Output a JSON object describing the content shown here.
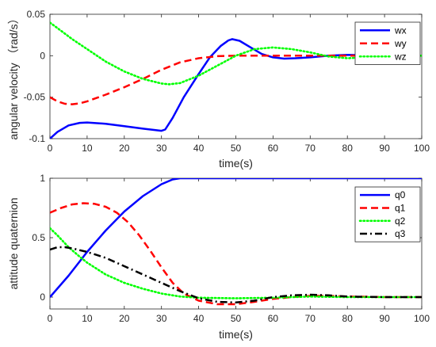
{
  "chart_data": [
    {
      "type": "line",
      "title": "",
      "xlabel": "time(s)",
      "ylabel": "angular velocity （rad/s）",
      "xlim": [
        0,
        100
      ],
      "ylim": [
        -0.1,
        0.05
      ],
      "xticks": [
        "0",
        "10",
        "20",
        "30",
        "40",
        "50",
        "60",
        "70",
        "80",
        "90",
        "100"
      ],
      "yticks": [
        "-0.1",
        "-0.05",
        "0",
        "0.05"
      ],
      "legend_position": "top-right",
      "grid": false,
      "series": [
        {
          "name": "wx",
          "color": "#0000ff",
          "dash": "solid",
          "x": [
            0,
            2,
            5,
            8,
            10,
            15,
            20,
            25,
            28,
            30,
            31,
            33,
            36,
            40,
            43,
            46,
            48,
            49,
            51,
            54,
            57,
            60,
            63,
            66,
            70,
            75,
            80,
            85,
            90,
            95,
            100
          ],
          "y": [
            -0.1,
            -0.092,
            -0.084,
            -0.081,
            -0.0805,
            -0.082,
            -0.085,
            -0.088,
            -0.0895,
            -0.0905,
            -0.089,
            -0.075,
            -0.05,
            -0.022,
            -0.002,
            0.012,
            0.0185,
            0.02,
            0.018,
            0.01,
            0.002,
            -0.002,
            -0.0035,
            -0.003,
            -0.002,
            0.0,
            0.001,
            0.0005,
            0.0,
            0.0,
            0.0
          ]
        },
        {
          "name": "wy",
          "color": "#ff0000",
          "dash": "dashed",
          "x": [
            0,
            2,
            4,
            6,
            8,
            10,
            15,
            20,
            25,
            30,
            35,
            40,
            45,
            50,
            60,
            70,
            80,
            90,
            100
          ],
          "y": [
            -0.05,
            -0.055,
            -0.058,
            -0.0585,
            -0.0575,
            -0.055,
            -0.047,
            -0.038,
            -0.028,
            -0.017,
            -0.008,
            -0.003,
            -0.0005,
            0.0,
            0.0,
            0.0,
            0.0,
            0.0,
            0.0
          ]
        },
        {
          "name": "wz",
          "color": "#00ff00",
          "dash": "dotted",
          "x": [
            0,
            3,
            6,
            10,
            15,
            20,
            25,
            30,
            32,
            35,
            40,
            45,
            50,
            55,
            60,
            65,
            70,
            75,
            80,
            85,
            90,
            95,
            100
          ],
          "y": [
            0.04,
            0.03,
            0.02,
            0.008,
            -0.007,
            -0.019,
            -0.028,
            -0.0335,
            -0.0345,
            -0.033,
            -0.024,
            -0.012,
            0.0,
            0.008,
            0.01,
            0.008,
            0.004,
            -0.001,
            -0.003,
            -0.002,
            -0.001,
            0.0,
            0.0
          ]
        }
      ]
    },
    {
      "type": "line",
      "title": "",
      "xlabel": "time(s)",
      "ylabel": "attitude quaternion",
      "xlim": [
        0,
        100
      ],
      "ylim": [
        -0.1,
        1
      ],
      "xticks": [
        "0",
        "10",
        "20",
        "30",
        "40",
        "50",
        "60",
        "70",
        "80",
        "90",
        "100"
      ],
      "yticks": [
        "0",
        "0.5",
        "1"
      ],
      "legend_position": "top-right",
      "grid": false,
      "series": [
        {
          "name": "q0",
          "color": "#0000ff",
          "dash": "solid",
          "x": [
            0,
            5,
            10,
            15,
            20,
            25,
            30,
            33,
            35,
            38,
            40,
            50,
            60,
            70,
            80,
            90,
            100
          ],
          "y": [
            0.0,
            0.18,
            0.38,
            0.56,
            0.72,
            0.85,
            0.95,
            0.99,
            1.0,
            1.0,
            1.0,
            1.0,
            1.0,
            1.0,
            1.0,
            1.0,
            1.0
          ]
        },
        {
          "name": "q1",
          "color": "#ff0000",
          "dash": "dashed",
          "x": [
            0,
            3,
            6,
            9,
            12,
            15,
            18,
            21,
            24,
            27,
            30,
            33,
            36,
            40,
            45,
            50,
            55,
            60,
            65,
            70,
            75,
            80,
            90,
            100
          ],
          "y": [
            0.71,
            0.75,
            0.78,
            0.79,
            0.785,
            0.76,
            0.71,
            0.63,
            0.52,
            0.39,
            0.25,
            0.12,
            0.03,
            -0.03,
            -0.06,
            -0.06,
            -0.04,
            -0.015,
            0.0,
            0.01,
            0.01,
            0.005,
            0.0,
            0.0
          ]
        },
        {
          "name": "q2",
          "color": "#00ff00",
          "dash": "dotted",
          "x": [
            0,
            2,
            5,
            8,
            10,
            15,
            20,
            25,
            30,
            35,
            40,
            50,
            60,
            70,
            80,
            90,
            100
          ],
          "y": [
            0.58,
            0.52,
            0.42,
            0.34,
            0.29,
            0.19,
            0.12,
            0.07,
            0.03,
            0.005,
            -0.005,
            -0.01,
            -0.005,
            0.005,
            0.0,
            0.0,
            0.0
          ]
        },
        {
          "name": "q3",
          "color": "#000000",
          "dash": "dashdot",
          "x": [
            0,
            2,
            4,
            6,
            10,
            15,
            20,
            25,
            30,
            35,
            40,
            45,
            50,
            55,
            60,
            65,
            70,
            75,
            80,
            90,
            100
          ],
          "y": [
            0.4,
            0.42,
            0.42,
            0.41,
            0.38,
            0.33,
            0.26,
            0.19,
            0.12,
            0.05,
            -0.01,
            -0.04,
            -0.045,
            -0.03,
            0.0,
            0.015,
            0.02,
            0.015,
            0.005,
            0.0,
            0.0
          ]
        }
      ]
    }
  ]
}
